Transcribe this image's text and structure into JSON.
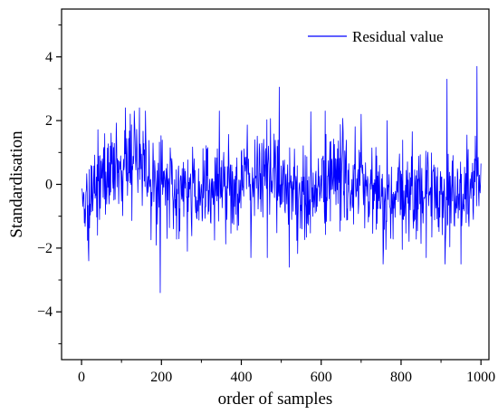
{
  "chart_data": {
    "type": "line",
    "title": "",
    "xlabel": "order of samples",
    "ylabel": "Standardisation",
    "xlim": [
      -50,
      1020
    ],
    "ylim": [
      -5.5,
      5.5
    ],
    "xticks": [
      0,
      200,
      400,
      600,
      800,
      1000
    ],
    "yticks": [
      -4,
      -2,
      0,
      2,
      4
    ],
    "grid": false,
    "legend_position": "top-right",
    "series_color": "#0000ff",
    "series": [
      {
        "name": "Residual value",
        "n_points": 1000,
        "summary": "Noisy standardized residuals fluctuating around 0 for samples 1–1000, mostly within about -2.5 to 2.5.",
        "level_profile": [
          {
            "x": 0,
            "y": -0.5
          },
          {
            "x": 60,
            "y": 0.2
          },
          {
            "x": 100,
            "y": 0.7
          },
          {
            "x": 150,
            "y": 0.8
          },
          {
            "x": 190,
            "y": 0.1
          },
          {
            "x": 230,
            "y": -0.4
          },
          {
            "x": 300,
            "y": -0.1
          },
          {
            "x": 400,
            "y": 0.0
          },
          {
            "x": 480,
            "y": 0.4
          },
          {
            "x": 560,
            "y": -0.5
          },
          {
            "x": 640,
            "y": 0.3
          },
          {
            "x": 720,
            "y": -0.2
          },
          {
            "x": 780,
            "y": -0.7
          },
          {
            "x": 830,
            "y": -0.2
          },
          {
            "x": 900,
            "y": -0.3
          },
          {
            "x": 950,
            "y": -0.4
          },
          {
            "x": 1000,
            "y": 0.3
          }
        ],
        "extremes": [
          {
            "x": 18,
            "y": -2.4
          },
          {
            "x": 110,
            "y": 2.4
          },
          {
            "x": 145,
            "y": 2.4
          },
          {
            "x": 197,
            "y": -3.4
          },
          {
            "x": 265,
            "y": -2.1
          },
          {
            "x": 345,
            "y": 2.3
          },
          {
            "x": 465,
            "y": -2.3
          },
          {
            "x": 495,
            "y": 3.05
          },
          {
            "x": 520,
            "y": -2.6
          },
          {
            "x": 610,
            "y": 2.3
          },
          {
            "x": 700,
            "y": 2.2
          },
          {
            "x": 755,
            "y": -2.5
          },
          {
            "x": 765,
            "y": 2.0
          },
          {
            "x": 910,
            "y": -2.5
          },
          {
            "x": 915,
            "y": 3.3
          },
          {
            "x": 950,
            "y": -2.5
          },
          {
            "x": 990,
            "y": 3.7
          }
        ]
      }
    ]
  }
}
